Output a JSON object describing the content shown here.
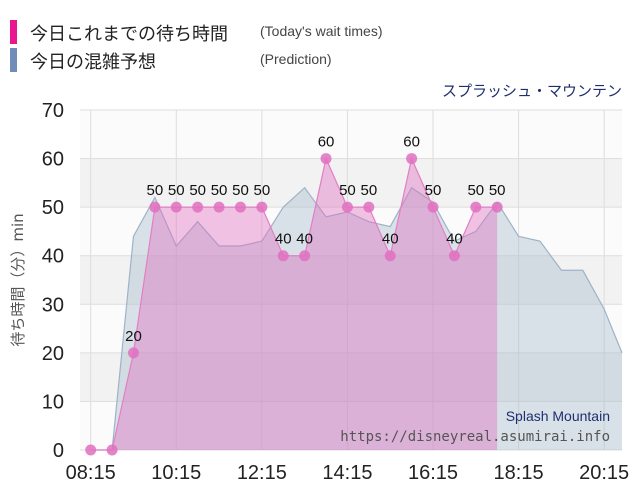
{
  "legend": [
    {
      "label": "今日これまでの待ち時間",
      "sub": "(Today's wait times)",
      "color": "#e8188c"
    },
    {
      "label": "今日の混雑予想",
      "sub": "(Prediction)",
      "color": "#6f8db6"
    }
  ],
  "chart_data": {
    "type": "area",
    "title": "スプラッシュ・マウンテン",
    "ylabel": "待ち時間（分）min",
    "ylim": [
      0,
      70
    ],
    "yticks": [
      0,
      10,
      20,
      30,
      40,
      50,
      60,
      70
    ],
    "xlim": [
      "08:00",
      "20:40"
    ],
    "xticks": [
      "08:15",
      "10:15",
      "12:15",
      "14:15",
      "16:15",
      "18:15",
      "20:15"
    ],
    "grid": true,
    "legend_position": "top-left",
    "series": [
      {
        "name": "今日これまでの待ち時間",
        "color": "#e070c0",
        "points": [
          [
            "08:15",
            0
          ],
          [
            "08:45",
            0
          ],
          [
            "09:15",
            20
          ],
          [
            "09:45",
            50
          ],
          [
            "10:15",
            50
          ],
          [
            "10:45",
            50
          ],
          [
            "11:15",
            50
          ],
          [
            "11:45",
            50
          ],
          [
            "12:15",
            50
          ],
          [
            "12:45",
            40
          ],
          [
            "13:15",
            40
          ],
          [
            "13:45",
            60
          ],
          [
            "14:15",
            50
          ],
          [
            "14:45",
            50
          ],
          [
            "15:15",
            40
          ],
          [
            "15:45",
            60
          ],
          [
            "16:15",
            50
          ],
          [
            "16:45",
            40
          ],
          [
            "17:15",
            50
          ],
          [
            "17:45",
            50
          ]
        ]
      },
      {
        "name": "今日の混雑予想",
        "color": "#a9bccc",
        "points": [
          [
            "08:15",
            0
          ],
          [
            "08:45",
            0
          ],
          [
            "09:15",
            44
          ],
          [
            "09:45",
            52
          ],
          [
            "10:15",
            42
          ],
          [
            "10:45",
            47
          ],
          [
            "11:15",
            42
          ],
          [
            "11:45",
            42
          ],
          [
            "12:15",
            43
          ],
          [
            "12:45",
            50
          ],
          [
            "13:15",
            54
          ],
          [
            "13:45",
            48
          ],
          [
            "14:15",
            49
          ],
          [
            "14:45",
            47
          ],
          [
            "15:15",
            46
          ],
          [
            "15:45",
            54
          ],
          [
            "16:15",
            51
          ],
          [
            "16:45",
            43
          ],
          [
            "17:15",
            45
          ],
          [
            "17:45",
            51
          ],
          [
            "18:15",
            44
          ],
          [
            "18:45",
            43
          ],
          [
            "19:15",
            37
          ],
          [
            "19:45",
            37
          ],
          [
            "20:15",
            29
          ],
          [
            "20:40",
            20
          ]
        ]
      }
    ]
  },
  "watermark": {
    "name": "Splash Mountain",
    "url": "https://disneyreal.asumirai.info"
  },
  "colors": {
    "plot_bg": "#f2f2f2",
    "band_bg": "#fbfbfb",
    "grid": "#dddddd",
    "marker": "#e070c0"
  }
}
